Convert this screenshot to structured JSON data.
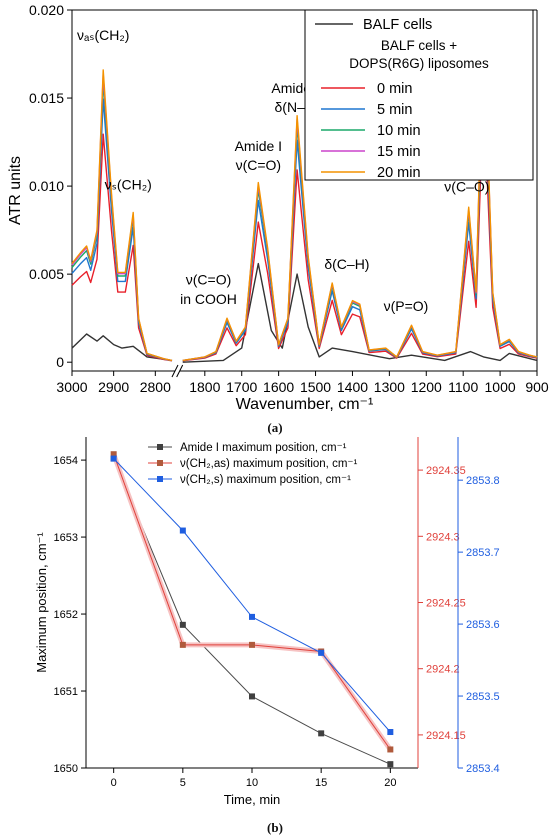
{
  "panels": {
    "a": {
      "caption": "(a)"
    },
    "b": {
      "caption": "(b)"
    }
  },
  "chart_data": [
    {
      "panel": "a",
      "type": "line",
      "title": "",
      "xlabel": "Wavenumber, cm⁻¹",
      "ylabel": "ATR units",
      "xlim": [
        3000,
        900
      ],
      "ylim": [
        -0.0005,
        0.02
      ],
      "axis_break": [
        2760,
        1860
      ],
      "xticks": [
        3000,
        2900,
        2800,
        1800,
        1700,
        1600,
        1500,
        1400,
        1300,
        1200,
        1100,
        1000,
        900
      ],
      "yticks": [
        "0",
        "0.005",
        "0.010",
        "0.015",
        "0.020"
      ],
      "ytick_values": [
        0,
        0.005,
        0.01,
        0.015,
        0.02
      ],
      "grid": false,
      "legend_position": "top-right",
      "legend_group_heading": "BALF cells +\nDOPS(R6G) liposomes",
      "peaks": [
        {
          "x": 3000,
          "y": 0.0056
        },
        {
          "x": 2980,
          "y": 0.0062
        },
        {
          "x": 2965,
          "y": 0.0066
        },
        {
          "x": 2955,
          "y": 0.0058
        },
        {
          "x": 2940,
          "y": 0.0075
        },
        {
          "x": 2925,
          "y": 0.0166
        },
        {
          "x": 2905,
          "y": 0.0095
        },
        {
          "x": 2890,
          "y": 0.0051
        },
        {
          "x": 2872,
          "y": 0.0051
        },
        {
          "x": 2853,
          "y": 0.0085
        },
        {
          "x": 2840,
          "y": 0.0025
        },
        {
          "x": 2820,
          "y": 0.0005
        },
        {
          "x": 2780,
          "y": 0.0002
        },
        {
          "x": 2760,
          "y": 0.0001
        },
        {
          "x": 1860,
          "y": 0.0001
        },
        {
          "x": 1800,
          "y": 0.0003
        },
        {
          "x": 1770,
          "y": 0.0006
        },
        {
          "x": 1740,
          "y": 0.0025
        },
        {
          "x": 1715,
          "y": 0.0012
        },
        {
          "x": 1690,
          "y": 0.002
        },
        {
          "x": 1655,
          "y": 0.0102
        },
        {
          "x": 1630,
          "y": 0.0065
        },
        {
          "x": 1600,
          "y": 0.001
        },
        {
          "x": 1575,
          "y": 0.0025
        },
        {
          "x": 1550,
          "y": 0.014
        },
        {
          "x": 1520,
          "y": 0.006
        },
        {
          "x": 1490,
          "y": 0.001
        },
        {
          "x": 1455,
          "y": 0.0045
        },
        {
          "x": 1430,
          "y": 0.002
        },
        {
          "x": 1400,
          "y": 0.0035
        },
        {
          "x": 1380,
          "y": 0.0033
        },
        {
          "x": 1355,
          "y": 0.0007
        },
        {
          "x": 1310,
          "y": 0.0008
        },
        {
          "x": 1280,
          "y": 0.0003
        },
        {
          "x": 1240,
          "y": 0.0021
        },
        {
          "x": 1210,
          "y": 0.0006
        },
        {
          "x": 1170,
          "y": 0.0004
        },
        {
          "x": 1120,
          "y": 0.0006
        },
        {
          "x": 1085,
          "y": 0.0088
        },
        {
          "x": 1065,
          "y": 0.004
        },
        {
          "x": 1045,
          "y": 0.0196
        },
        {
          "x": 1020,
          "y": 0.004
        },
        {
          "x": 1000,
          "y": 0.001
        },
        {
          "x": 975,
          "y": 0.0013
        },
        {
          "x": 950,
          "y": 0.0006
        },
        {
          "x": 920,
          "y": 0.0004
        },
        {
          "x": 900,
          "y": 0.0003
        }
      ],
      "balf_points": [
        {
          "x": 3000,
          "y": 0.0008
        },
        {
          "x": 2965,
          "y": 0.0016
        },
        {
          "x": 2940,
          "y": 0.0012
        },
        {
          "x": 2925,
          "y": 0.0015
        },
        {
          "x": 2900,
          "y": 0.001
        },
        {
          "x": 2880,
          "y": 0.0008
        },
        {
          "x": 2853,
          "y": 0.0009
        },
        {
          "x": 2820,
          "y": 0.0003
        },
        {
          "x": 2760,
          "y": 0.0001
        },
        {
          "x": 1860,
          "y": 0.0
        },
        {
          "x": 1750,
          "y": 0.0001
        },
        {
          "x": 1700,
          "y": 0.0008
        },
        {
          "x": 1655,
          "y": 0.0056
        },
        {
          "x": 1620,
          "y": 0.0018
        },
        {
          "x": 1590,
          "y": 0.0008
        },
        {
          "x": 1550,
          "y": 0.005
        },
        {
          "x": 1520,
          "y": 0.002
        },
        {
          "x": 1490,
          "y": 0.0003
        },
        {
          "x": 1455,
          "y": 0.0008
        },
        {
          "x": 1400,
          "y": 0.0006
        },
        {
          "x": 1300,
          "y": 0.0002
        },
        {
          "x": 1240,
          "y": 0.0004
        },
        {
          "x": 1150,
          "y": 0.0001
        },
        {
          "x": 1080,
          "y": 0.0006
        },
        {
          "x": 1045,
          "y": 0.0003
        },
        {
          "x": 1000,
          "y": 0.0001
        },
        {
          "x": 975,
          "y": 0.0005
        },
        {
          "x": 900,
          "y": 0.0001
        }
      ],
      "series": [
        {
          "name": "BALF cells",
          "color": "#333333",
          "shape": "balf"
        },
        {
          "name": "0 min",
          "color": "#e8202a",
          "scale": 0.78
        },
        {
          "name": "5 min",
          "color": "#1f77d0",
          "scale": 0.9
        },
        {
          "name": "10 min",
          "color": "#1aa86a",
          "scale": 0.96
        },
        {
          "name": "15 min",
          "color": "#cc44cc",
          "scale": 0.985
        },
        {
          "name": "20 min",
          "color": "#f39200",
          "scale": 1.0
        }
      ],
      "annotations": [
        {
          "text": "νₐₛ(CH₂)",
          "x": 2925,
          "y": 0.0183
        },
        {
          "text": "νₛ(CH₂)",
          "x": 2865,
          "y": 0.0098
        },
        {
          "text": "Amide II",
          "x": 1550,
          "y": 0.0153
        },
        {
          "text": "δ(N–H)",
          "x": 1550,
          "y": 0.0142
        },
        {
          "text": "Amide I",
          "x": 1655,
          "y": 0.012
        },
        {
          "text": "ν(C=O)",
          "x": 1655,
          "y": 0.0109
        },
        {
          "text": "ν(C=O)",
          "x": 1790,
          "y": 0.0044
        },
        {
          "text": "in COOH",
          "x": 1790,
          "y": 0.0033
        },
        {
          "text": "δ(C–H)",
          "x": 1415,
          "y": 0.0053
        },
        {
          "text": "ν(P=O)",
          "x": 1255,
          "y": 0.0029
        },
        {
          "text": "ν(C–O)",
          "x": 1090,
          "y": 0.0097
        }
      ]
    },
    {
      "panel": "b",
      "type": "line",
      "title": "",
      "xlabel": "Time, min",
      "ylabel": "Maximum position, cm⁻¹",
      "x": [
        0,
        5,
        10,
        15,
        20
      ],
      "xlim": [
        -2,
        22
      ],
      "xticks": [
        0,
        5,
        10,
        15,
        20
      ],
      "grid": false,
      "legend_position": "top",
      "axes": [
        {
          "id": "left",
          "side": "left",
          "offset": 0,
          "ylim": [
            1650,
            1654.3
          ],
          "ticks": [
            1650,
            1651,
            1652,
            1653,
            1654
          ],
          "color": "#000000"
        },
        {
          "id": "right1",
          "side": "right",
          "offset": 0,
          "ylim": [
            2924.125,
            2924.375
          ],
          "ticks": [
            2924.15,
            2924.2,
            2924.25,
            2924.3,
            2924.35
          ],
          "color": "#e0413b"
        },
        {
          "id": "right2",
          "side": "right",
          "offset": 40,
          "ylim": [
            2853.4,
            2853.86
          ],
          "ticks": [
            2853.4,
            2853.5,
            2853.6,
            2853.7,
            2853.8
          ],
          "color": "#1f5ee0"
        }
      ],
      "series": [
        {
          "name": "Amide I maximum position, cm⁻¹",
          "axis": "left",
          "color": "#4a4a4a",
          "marker_color": "#404040",
          "values": [
            1654.02,
            1651.86,
            1650.93,
            1650.45,
            1650.05
          ]
        },
        {
          "name": "ν(CH₂,as) maximum position, cm⁻¹",
          "axis": "right1",
          "color": "#e0413b",
          "marker_color": "#b05a3c",
          "band": "#f6c3c3",
          "values": [
            2924.362,
            2924.218,
            2924.218,
            2924.213,
            2924.139
          ]
        },
        {
          "name": "ν(CH₂,s) maximum position, cm⁻¹",
          "axis": "right2",
          "color": "#1f5ee0",
          "marker_color": "#1f5ee0",
          "values": [
            2853.83,
            2853.73,
            2853.61,
            2853.56,
            2853.45
          ]
        }
      ]
    }
  ]
}
